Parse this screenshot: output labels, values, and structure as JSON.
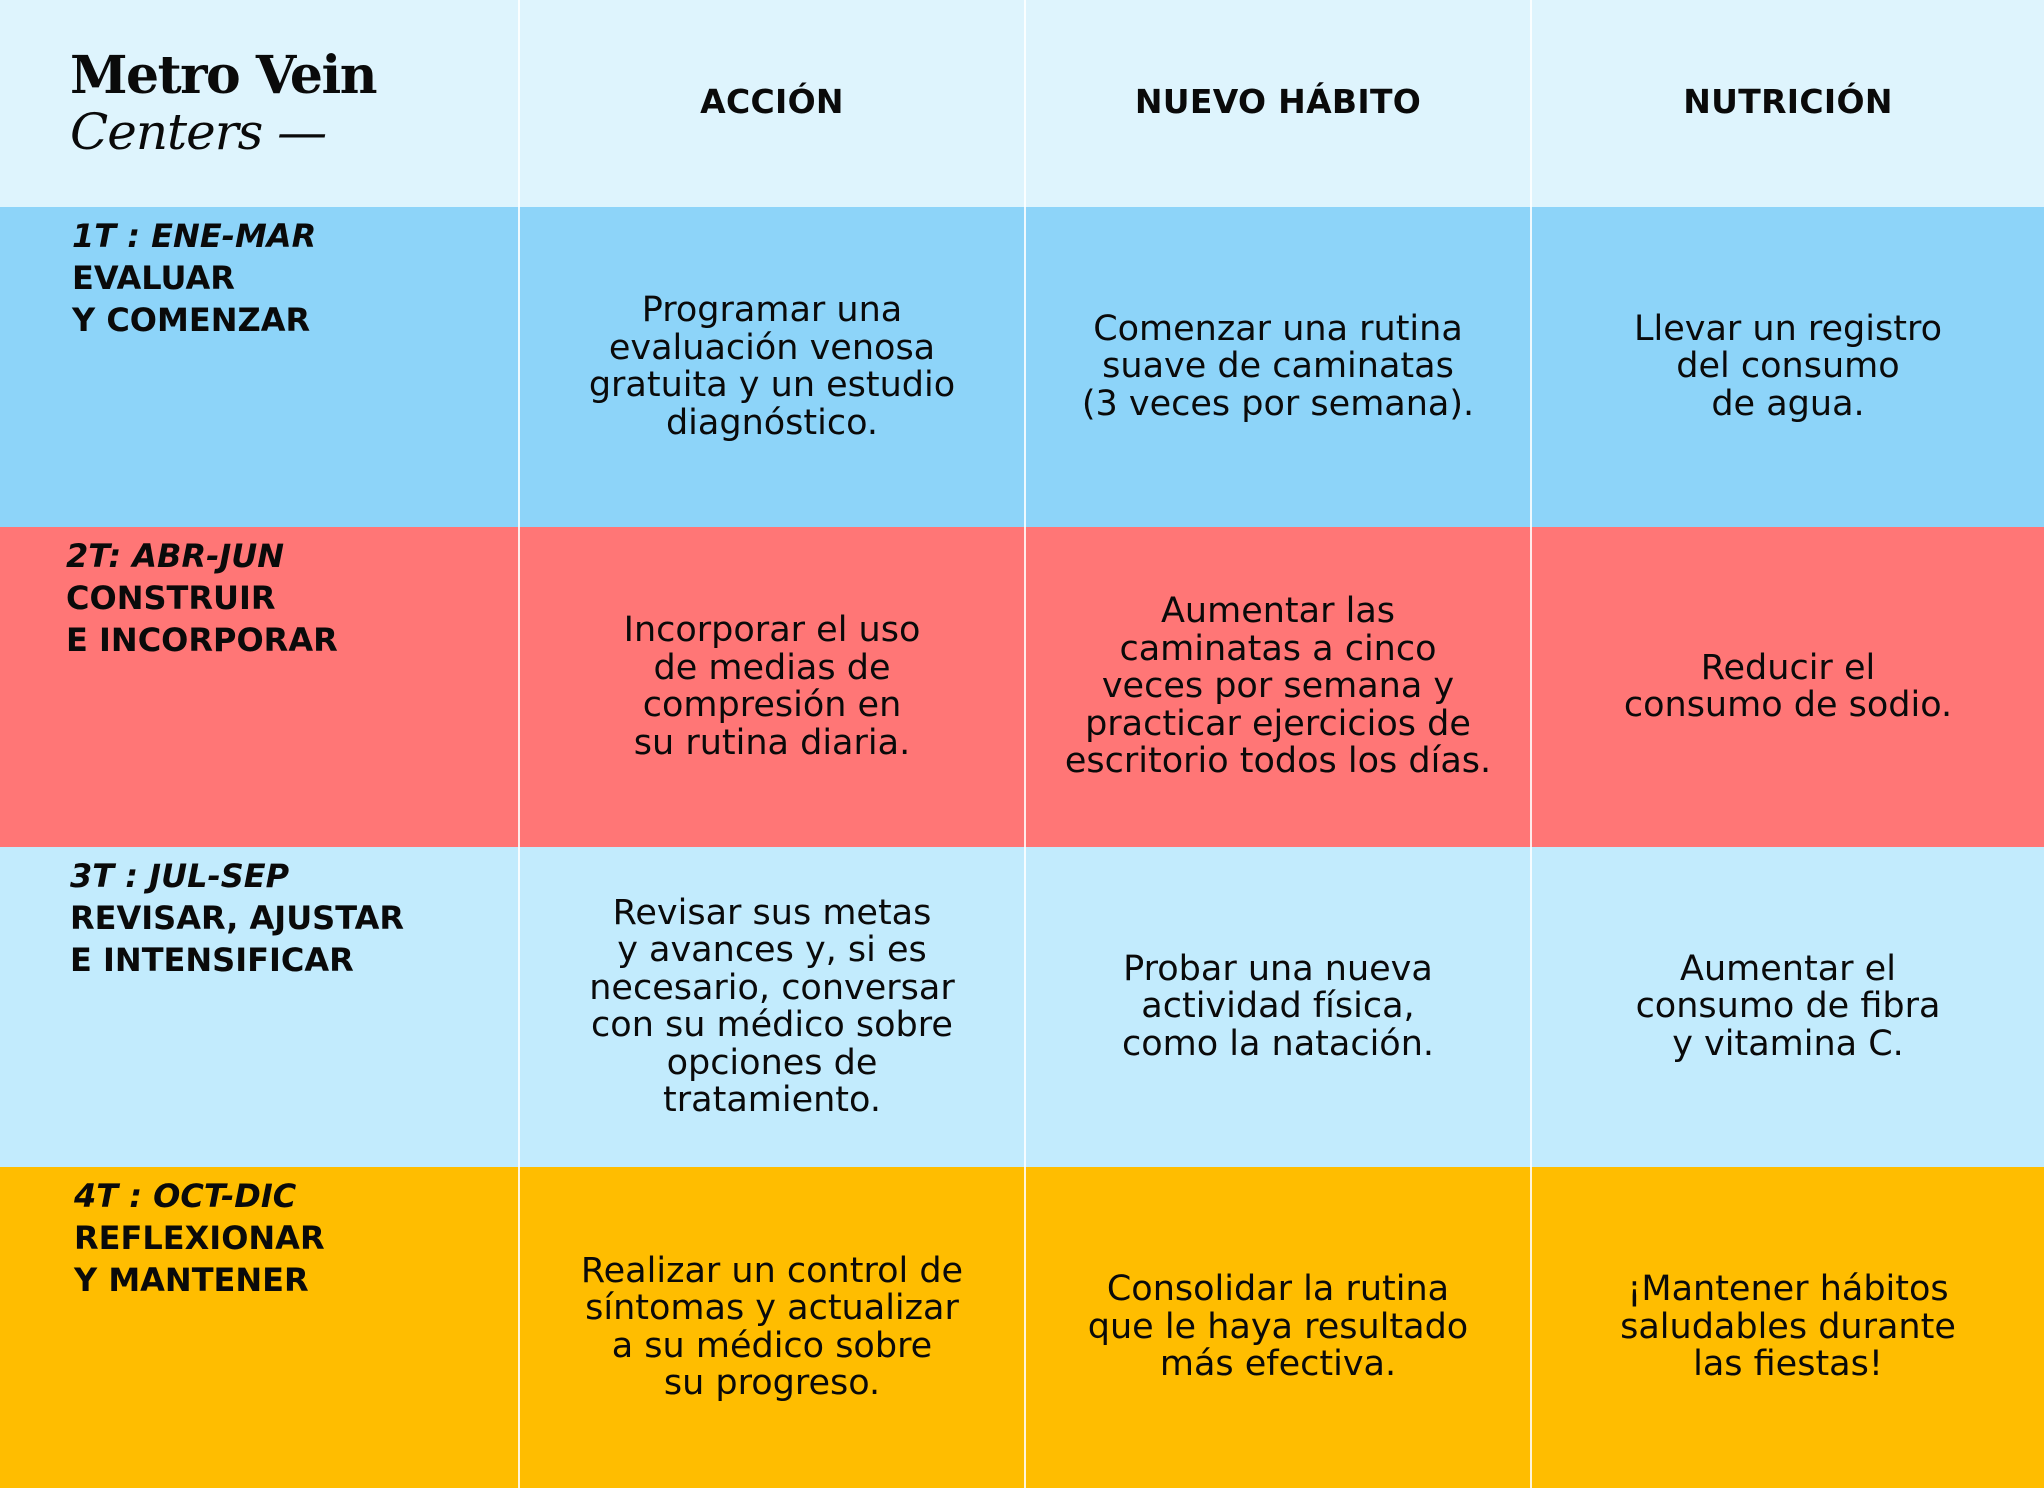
{
  "logo": {
    "line1": "Metro Vein",
    "line2": "Centers —"
  },
  "columns": [
    "ACCIÓN",
    "NUEVO HÁBITO",
    "NUTRICIÓN"
  ],
  "rows": [
    {
      "period": "1T : ENE-MAR",
      "phase": "EVALUAR\nY COMENZAR",
      "accion": "Programar una\nevaluación venosa\ngratuita y un estudio\ndiagnóstico.",
      "habito": "Comenzar una rutina\nsuave de caminatas\n(3 veces por semana).",
      "nutricion": "Llevar un registro\ndel consumo\nde agua.",
      "color": "#8dd4f9"
    },
    {
      "period": "2T: ABR-JUN",
      "phase": "CONSTRUIR\nE INCORPORAR",
      "accion": "Incorporar el uso\nde medias de\ncompresión en\nsu rutina diaria.",
      "habito": "Aumentar las\ncaminatas a cinco\nveces por semana y\npracticar ejercicios de\nescritorio todos los días.",
      "nutricion": "Reducir el\nconsumo de sodio.",
      "color": "#ff7676"
    },
    {
      "period": "3T : JUL-SEP",
      "phase": "REVISAR, AJUSTAR\nE INTENSIFICAR",
      "accion": "Revisar sus metas\ny avances y, si es\nnecesario, conversar\ncon su médico sobre\nopciones de\ntratamiento.",
      "habito": "Probar una nueva\nactividad física,\ncomo la natación.",
      "nutricion": "Aumentar el\nconsumo de fibra\ny vitamina C.",
      "color": "#c2ebfd"
    },
    {
      "period": "4T : OCT-DIC",
      "phase": "REFLEXIONAR\nY MANTENER",
      "accion": "Realizar un control de\nsíntomas y actualizar\na su médico sobre\nsu progreso.",
      "habito": "Consolidar la rutina\nque le haya resultado\nmás efectiva.",
      "nutricion": "¡Mantener hábitos\nsaludables durante\nlas fiestas!",
      "color": "#ffbd00"
    }
  ],
  "colors": {
    "header_bg": "#def4fd",
    "text": "#0a0a0a"
  }
}
